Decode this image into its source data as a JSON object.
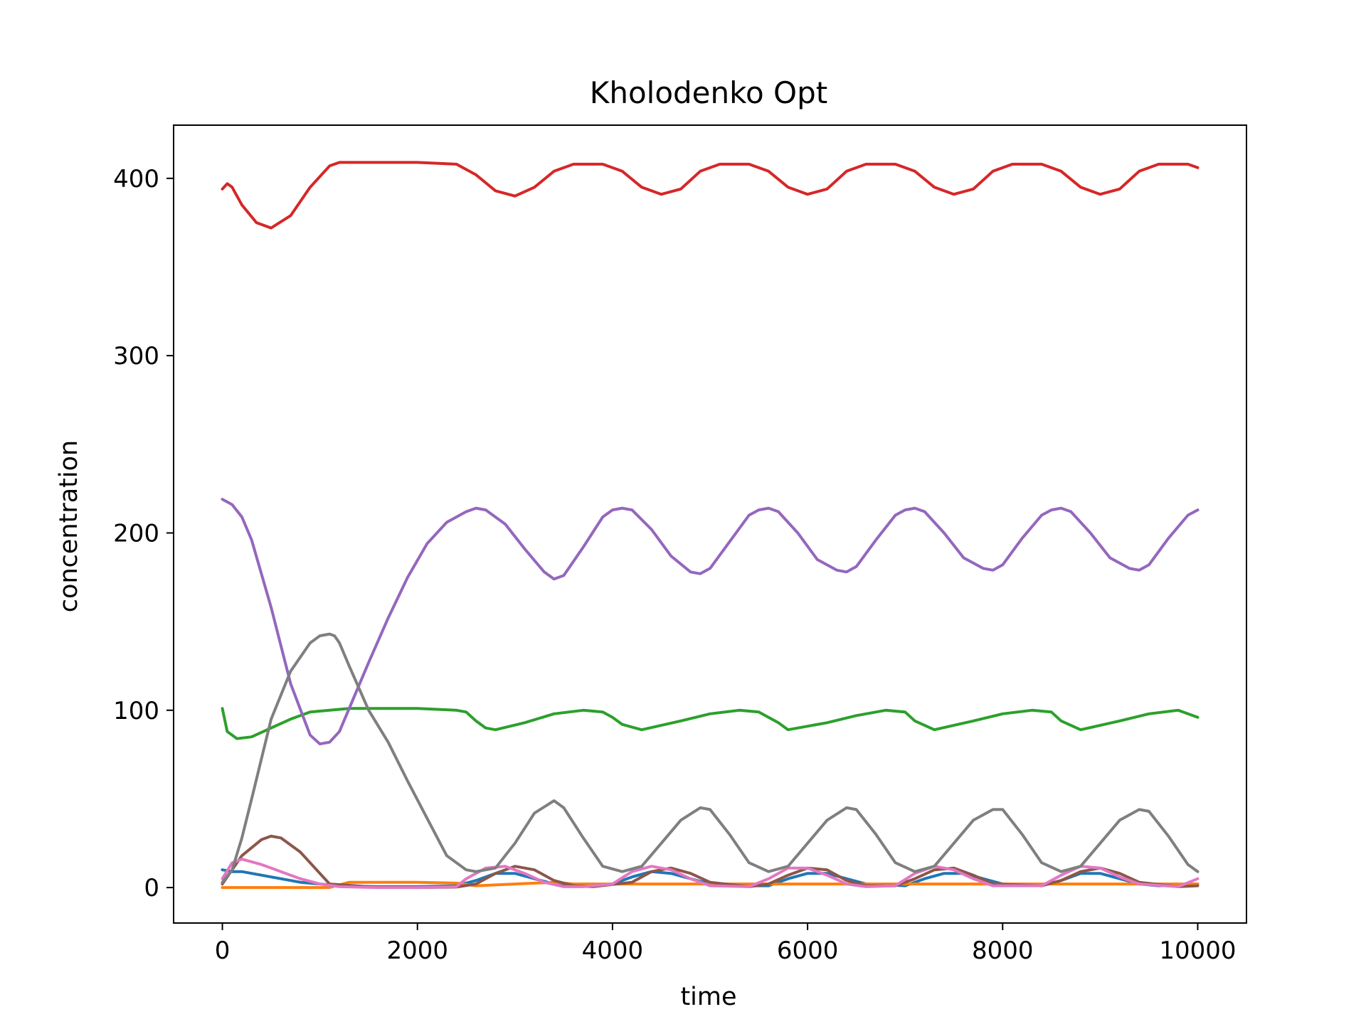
{
  "chart_data": {
    "type": "line",
    "title": "Kholodenko Opt",
    "xlabel": "time",
    "ylabel": "concentration",
    "xlim": [
      -500,
      10500
    ],
    "ylim": [
      -20,
      430
    ],
    "xticks": [
      0,
      2000,
      4000,
      6000,
      8000,
      10000
    ],
    "yticks": [
      0,
      100,
      200,
      300,
      400
    ],
    "grid": false,
    "legend": "none",
    "series": [
      {
        "name": "series-1",
        "color": "#1f77b4",
        "x": [
          0,
          100,
          200,
          400,
          600,
          800,
          1000,
          1200,
          1600,
          2000,
          2400,
          2600,
          2800,
          3000,
          3200,
          3400,
          3600,
          4000,
          4200,
          4400,
          4600,
          4800,
          5000,
          5200,
          5600,
          5800,
          6000,
          6200,
          6400,
          6600,
          7000,
          7200,
          7400,
          7600,
          7800,
          8000,
          8400,
          8600,
          8800,
          9000,
          9200,
          9400,
          9600,
          10000
        ],
        "y": [
          10,
          9,
          9,
          7,
          5,
          3,
          2,
          1,
          0.5,
          0.5,
          1,
          4,
          8,
          8,
          5,
          2,
          1,
          2,
          6,
          9,
          8,
          5,
          2,
          1,
          1,
          5,
          8,
          8,
          5,
          2,
          1,
          5,
          8,
          8,
          5,
          2,
          1,
          4,
          8,
          8,
          5,
          2,
          1,
          2
        ]
      },
      {
        "name": "series-2",
        "color": "#ff7f0e",
        "x": [
          0,
          1100,
          1300,
          2000,
          2400,
          2600,
          3400,
          3600,
          4000,
          5000,
          6000,
          7000,
          8000,
          9000,
          10000
        ],
        "y": [
          0,
          0,
          3,
          3,
          2.5,
          1,
          3,
          2,
          2,
          2,
          2,
          2,
          2,
          2,
          2
        ]
      },
      {
        "name": "series-3",
        "color": "#2ca02c",
        "x": [
          0,
          50,
          150,
          300,
          500,
          700,
          900,
          1100,
          1300,
          1600,
          2000,
          2400,
          2500,
          2600,
          2700,
          2800,
          3100,
          3400,
          3700,
          3900,
          4000,
          4100,
          4300,
          4700,
          5000,
          5300,
          5500,
          5700,
          5800,
          6200,
          6500,
          6800,
          7000,
          7100,
          7300,
          7700,
          8000,
          8300,
          8500,
          8600,
          8800,
          9200,
          9500,
          9800,
          10000
        ],
        "y": [
          101,
          88,
          84,
          85,
          90,
          95,
          99,
          100,
          101,
          101,
          101,
          100,
          99,
          94,
          90,
          89,
          93,
          98,
          100,
          99,
          96,
          92,
          89,
          94,
          98,
          100,
          99,
          93,
          89,
          93,
          97,
          100,
          99,
          94,
          89,
          94,
          98,
          100,
          99,
          94,
          89,
          94,
          98,
          100,
          96
        ]
      },
      {
        "name": "series-4",
        "color": "#d62728",
        "x": [
          0,
          50,
          100,
          200,
          350,
          500,
          700,
          900,
          1100,
          1200,
          1500,
          2000,
          2400,
          2600,
          2800,
          3000,
          3200,
          3400,
          3600,
          3900,
          4100,
          4300,
          4500,
          4700,
          4900,
          5100,
          5400,
          5600,
          5800,
          6000,
          6200,
          6400,
          6600,
          6900,
          7100,
          7300,
          7500,
          7700,
          7900,
          8100,
          8400,
          8600,
          8800,
          9000,
          9200,
          9400,
          9600,
          9900,
          10000
        ],
        "y": [
          394,
          397,
          395,
          385,
          375,
          372,
          379,
          395,
          407,
          409,
          409,
          409,
          408,
          402,
          393,
          390,
          395,
          404,
          408,
          408,
          404,
          395,
          391,
          394,
          404,
          408,
          408,
          404,
          395,
          391,
          394,
          404,
          408,
          408,
          404,
          395,
          391,
          394,
          404,
          408,
          408,
          404,
          395,
          391,
          394,
          404,
          408,
          408,
          406
        ]
      },
      {
        "name": "series-5",
        "color": "#9467bd",
        "x": [
          0,
          100,
          200,
          300,
          500,
          700,
          900,
          1000,
          1100,
          1200,
          1300,
          1500,
          1700,
          1900,
          2100,
          2300,
          2500,
          2600,
          2700,
          2900,
          3100,
          3300,
          3400,
          3500,
          3700,
          3900,
          4000,
          4100,
          4200,
          4400,
          4600,
          4800,
          4900,
          5000,
          5200,
          5400,
          5500,
          5600,
          5700,
          5900,
          6100,
          6300,
          6400,
          6500,
          6700,
          6900,
          7000,
          7100,
          7200,
          7400,
          7600,
          7800,
          7900,
          8000,
          8200,
          8400,
          8500,
          8600,
          8700,
          8900,
          9100,
          9300,
          9400,
          9500,
          9700,
          9900,
          10000
        ],
        "y": [
          219,
          216,
          209,
          196,
          158,
          115,
          86,
          81,
          82,
          88,
          101,
          127,
          152,
          175,
          194,
          206,
          212,
          214,
          213,
          205,
          191,
          178,
          174,
          176,
          192,
          209,
          213,
          214,
          213,
          202,
          187,
          178,
          177,
          180,
          195,
          210,
          213,
          214,
          212,
          200,
          185,
          179,
          178,
          181,
          196,
          210,
          213,
          214,
          212,
          200,
          186,
          180,
          179,
          182,
          197,
          210,
          213,
          214,
          212,
          200,
          186,
          180,
          179,
          182,
          197,
          210,
          213
        ]
      },
      {
        "name": "series-6",
        "color": "#8c564b",
        "x": [
          0,
          200,
          400,
          500,
          600,
          800,
          1000,
          1100,
          1500,
          2000,
          2400,
          2600,
          2800,
          3000,
          3200,
          3400,
          3600,
          3800,
          4200,
          4400,
          4600,
          4800,
          5000,
          5400,
          5600,
          5800,
          6000,
          6200,
          6400,
          6600,
          6900,
          7100,
          7300,
          7500,
          7700,
          7900,
          8400,
          8600,
          8800,
          9000,
          9200,
          9400,
          9800,
          10000
        ],
        "y": [
          2,
          18,
          27,
          29,
          28,
          20,
          8,
          2,
          0.5,
          0,
          0.3,
          2,
          8,
          12,
          10,
          4,
          1,
          0.5,
          3,
          9,
          11,
          8,
          3,
          0.5,
          2,
          7,
          11,
          10,
          4,
          1,
          1,
          5,
          10,
          11,
          7,
          2,
          1,
          4,
          9,
          11,
          8,
          3,
          0.5,
          1
        ]
      },
      {
        "name": "series-7",
        "color": "#e377c2",
        "x": [
          0,
          100,
          200,
          400,
          600,
          800,
          1000,
          1200,
          1600,
          2000,
          2400,
          2500,
          2700,
          2900,
          3100,
          3300,
          3500,
          3700,
          4000,
          4200,
          4400,
          4600,
          4800,
          5000,
          5400,
          5600,
          5800,
          6000,
          6200,
          6400,
          6600,
          6900,
          7100,
          7300,
          7500,
          7700,
          7900,
          8400,
          8600,
          8800,
          9000,
          9200,
          9400,
          9800,
          10000
        ],
        "y": [
          5,
          14,
          16,
          13,
          9,
          5,
          2,
          0.5,
          0,
          0,
          0.5,
          5,
          11,
          12,
          8,
          3,
          0.5,
          0.5,
          2,
          9,
          12,
          10,
          5,
          1,
          0.5,
          5,
          11,
          11,
          7,
          2,
          0.5,
          1,
          8,
          12,
          10,
          5,
          1,
          1,
          7,
          12,
          11,
          6,
          2,
          0.5,
          5
        ]
      },
      {
        "name": "series-8",
        "color": "#7f7f7f",
        "x": [
          0,
          100,
          200,
          300,
          500,
          700,
          900,
          1000,
          1100,
          1150,
          1200,
          1300,
          1500,
          1700,
          1900,
          2100,
          2300,
          2500,
          2600,
          2800,
          3000,
          3200,
          3400,
          3500,
          3700,
          3900,
          4100,
          4300,
          4500,
          4700,
          4900,
          5000,
          5200,
          5400,
          5600,
          5800,
          6000,
          6200,
          6400,
          6500,
          6700,
          6900,
          7100,
          7300,
          7500,
          7700,
          7900,
          8000,
          8200,
          8400,
          8600,
          8800,
          9000,
          9200,
          9400,
          9500,
          9700,
          9900,
          10000
        ],
        "y": [
          3,
          10,
          28,
          50,
          95,
          122,
          138,
          142,
          143,
          142,
          138,
          125,
          100,
          82,
          60,
          39,
          18,
          10,
          9,
          11,
          25,
          42,
          49,
          45,
          28,
          12,
          9,
          12,
          25,
          38,
          45,
          44,
          30,
          14,
          9,
          12,
          25,
          38,
          45,
          44,
          30,
          14,
          9,
          12,
          25,
          38,
          44,
          44,
          30,
          14,
          9,
          12,
          25,
          38,
          44,
          43,
          29,
          13,
          9
        ]
      }
    ]
  }
}
